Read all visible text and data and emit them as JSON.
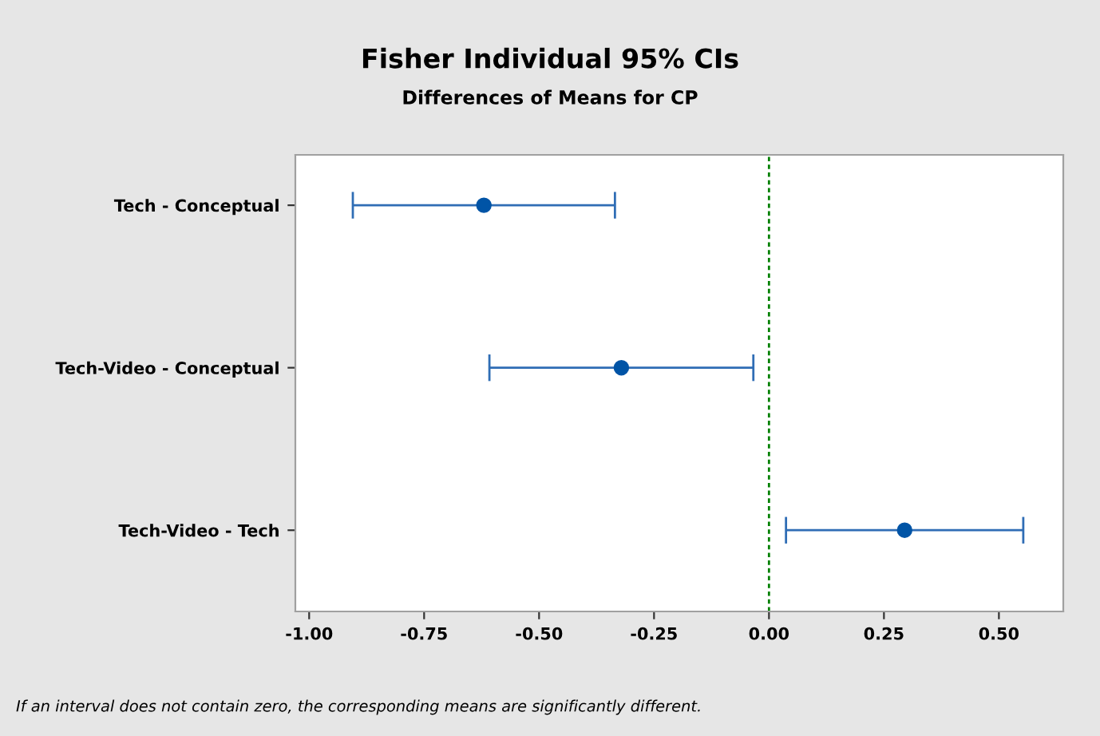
{
  "chart_data": {
    "type": "scatter",
    "title": "Fisher Individual 95% CIs",
    "subtitle": "Differences of Means for CP",
    "orientation": "horizontal",
    "categories": [
      "Tech - Conceptual",
      "Tech-Video - Conceptual",
      "Tech-Video - Tech"
    ],
    "values": [
      -0.62,
      -0.321,
      0.295
    ],
    "errors": [
      0.285,
      0.287,
      0.258
    ],
    "color": "#0054a6",
    "marker": "circle",
    "xlim": [
      -1.03,
      0.64
    ],
    "xticks": [
      {
        "value": -1.0,
        "label": "-1.00"
      },
      {
        "value": -0.75,
        "label": "-0.75"
      },
      {
        "value": -0.5,
        "label": "-0.50"
      },
      {
        "value": -0.25,
        "label": "-0.25"
      },
      {
        "value": 0.0,
        "label": "0.00"
      },
      {
        "value": 0.25,
        "label": "0.25"
      },
      {
        "value": 0.5,
        "label": "0.50"
      }
    ],
    "ref_lines": [
      {
        "axis": "x",
        "value": 0,
        "label": null,
        "color": "#008000",
        "line_style": "dashed"
      }
    ],
    "grid": false,
    "legend": false,
    "annotations": [
      "If an interval does not contain zero, the corresponding means are significantly different."
    ]
  }
}
